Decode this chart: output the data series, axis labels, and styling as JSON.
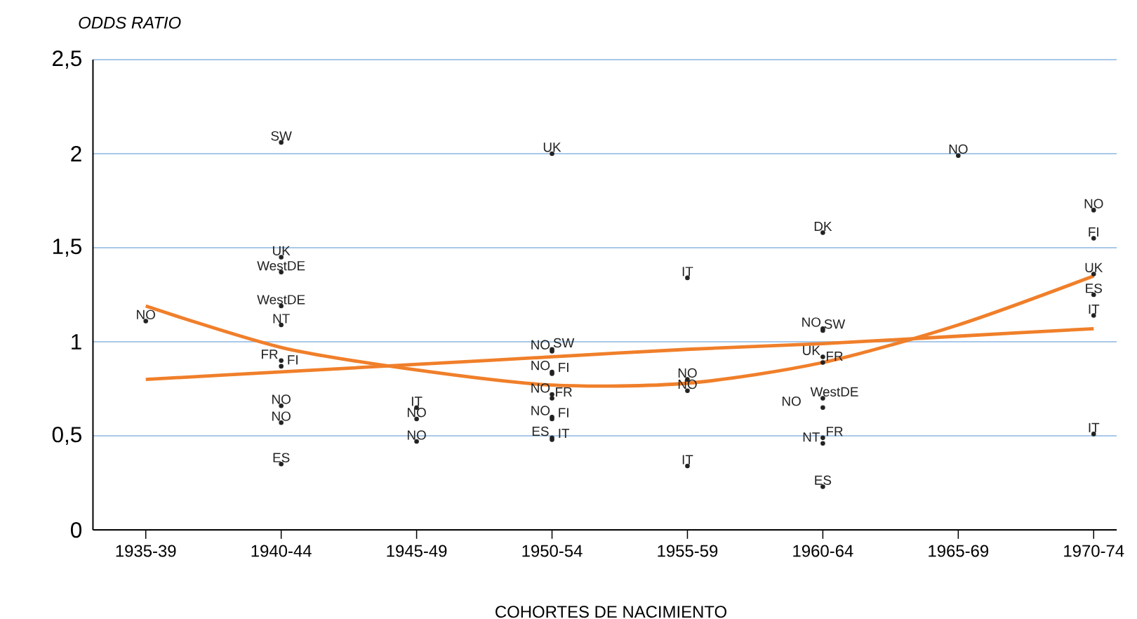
{
  "chart_data": {
    "type": "line",
    "xlabel": "COHORTES DE NACIMIENTO",
    "ylabel": "ODDS RATIO",
    "categories": [
      "1935-39",
      "1940-44",
      "1945-49",
      "1950-54",
      "1955-59",
      "1960-64",
      "1965-69",
      "1970-74"
    ],
    "series": [
      {
        "type": "scatter",
        "name": "NO",
        "color": "#222222",
        "marker": "circle",
        "x": [
          "1935-39",
          "1940-44",
          "1940-44",
          "1945-49",
          "1945-49",
          "1950-54",
          "1950-54",
          "1950-54",
          "1950-54",
          "1955-59",
          "1955-59",
          "1960-64",
          "1960-64",
          "1965-69",
          "1970-74"
        ],
        "values": [
          1.11,
          0.66,
          0.57,
          0.59,
          0.47,
          0.95,
          0.84,
          0.72,
          0.6,
          0.8,
          0.74,
          1.07,
          0.65,
          1.99,
          1.7
        ]
      },
      {
        "type": "scatter",
        "name": "SW",
        "color": "#222222",
        "marker": "circle",
        "x": [
          "1940-44",
          "1950-54",
          "1960-64"
        ],
        "values": [
          2.06,
          0.96,
          1.06
        ]
      },
      {
        "type": "scatter",
        "name": "UK",
        "color": "#222222",
        "marker": "circle",
        "x": [
          "1940-44",
          "1950-54",
          "1960-64",
          "1970-74"
        ],
        "values": [
          1.45,
          2.0,
          0.92,
          1.36
        ]
      },
      {
        "type": "scatter",
        "name": "WestDE",
        "color": "#222222",
        "marker": "circle",
        "x": [
          "1940-44",
          "1940-44",
          "1960-64"
        ],
        "values": [
          1.37,
          1.19,
          0.7
        ]
      },
      {
        "type": "scatter",
        "name": "NT",
        "color": "#222222",
        "marker": "circle",
        "x": [
          "1940-44",
          "1960-64"
        ],
        "values": [
          1.09,
          0.46
        ]
      },
      {
        "type": "scatter",
        "name": "FR",
        "color": "#222222",
        "marker": "circle",
        "x": [
          "1940-44",
          "1950-54",
          "1960-64",
          "1960-64"
        ],
        "values": [
          0.9,
          0.7,
          0.89,
          0.49
        ]
      },
      {
        "type": "scatter",
        "name": "FI",
        "color": "#222222",
        "marker": "circle",
        "x": [
          "1940-44",
          "1950-54",
          "1950-54",
          "1970-74"
        ],
        "values": [
          0.87,
          0.83,
          0.59,
          1.55
        ]
      },
      {
        "type": "scatter",
        "name": "ES",
        "color": "#222222",
        "marker": "circle",
        "x": [
          "1940-44",
          "1950-54",
          "1960-64",
          "1970-74"
        ],
        "values": [
          0.35,
          0.49,
          0.23,
          1.25
        ]
      },
      {
        "type": "scatter",
        "name": "IT",
        "color": "#222222",
        "marker": "circle",
        "x": [
          "1945-49",
          "1950-54",
          "1955-59",
          "1955-59",
          "1970-74",
          "1970-74"
        ],
        "values": [
          0.65,
          0.48,
          1.34,
          0.34,
          1.14,
          0.51
        ]
      },
      {
        "type": "scatter",
        "name": "DK",
        "color": "#222222",
        "marker": "circle",
        "x": [
          "1960-64"
        ],
        "values": [
          1.58
        ]
      },
      {
        "color": "#f07f2a",
        "values": [
          0.8,
          0.84,
          0.88,
          0.92,
          0.96,
          0.99,
          1.03,
          1.07
        ]
      },
      {
        "color": "#f07f2a",
        "values": [
          1.19,
          0.97,
          0.85,
          0.77,
          0.78,
          0.89,
          1.09,
          1.35
        ]
      }
    ],
    "ylim": [
      0,
      2.5
    ],
    "yticks": [
      0,
      {
        "value": 0.5,
        "label": "0,5"
      },
      1,
      {
        "value": 1.5,
        "label": "1,5"
      },
      2,
      {
        "value": 2.5,
        "label": "2,5"
      }
    ],
    "grid": "y",
    "legend": false,
    "marker": "none",
    "line_style": "solid"
  }
}
